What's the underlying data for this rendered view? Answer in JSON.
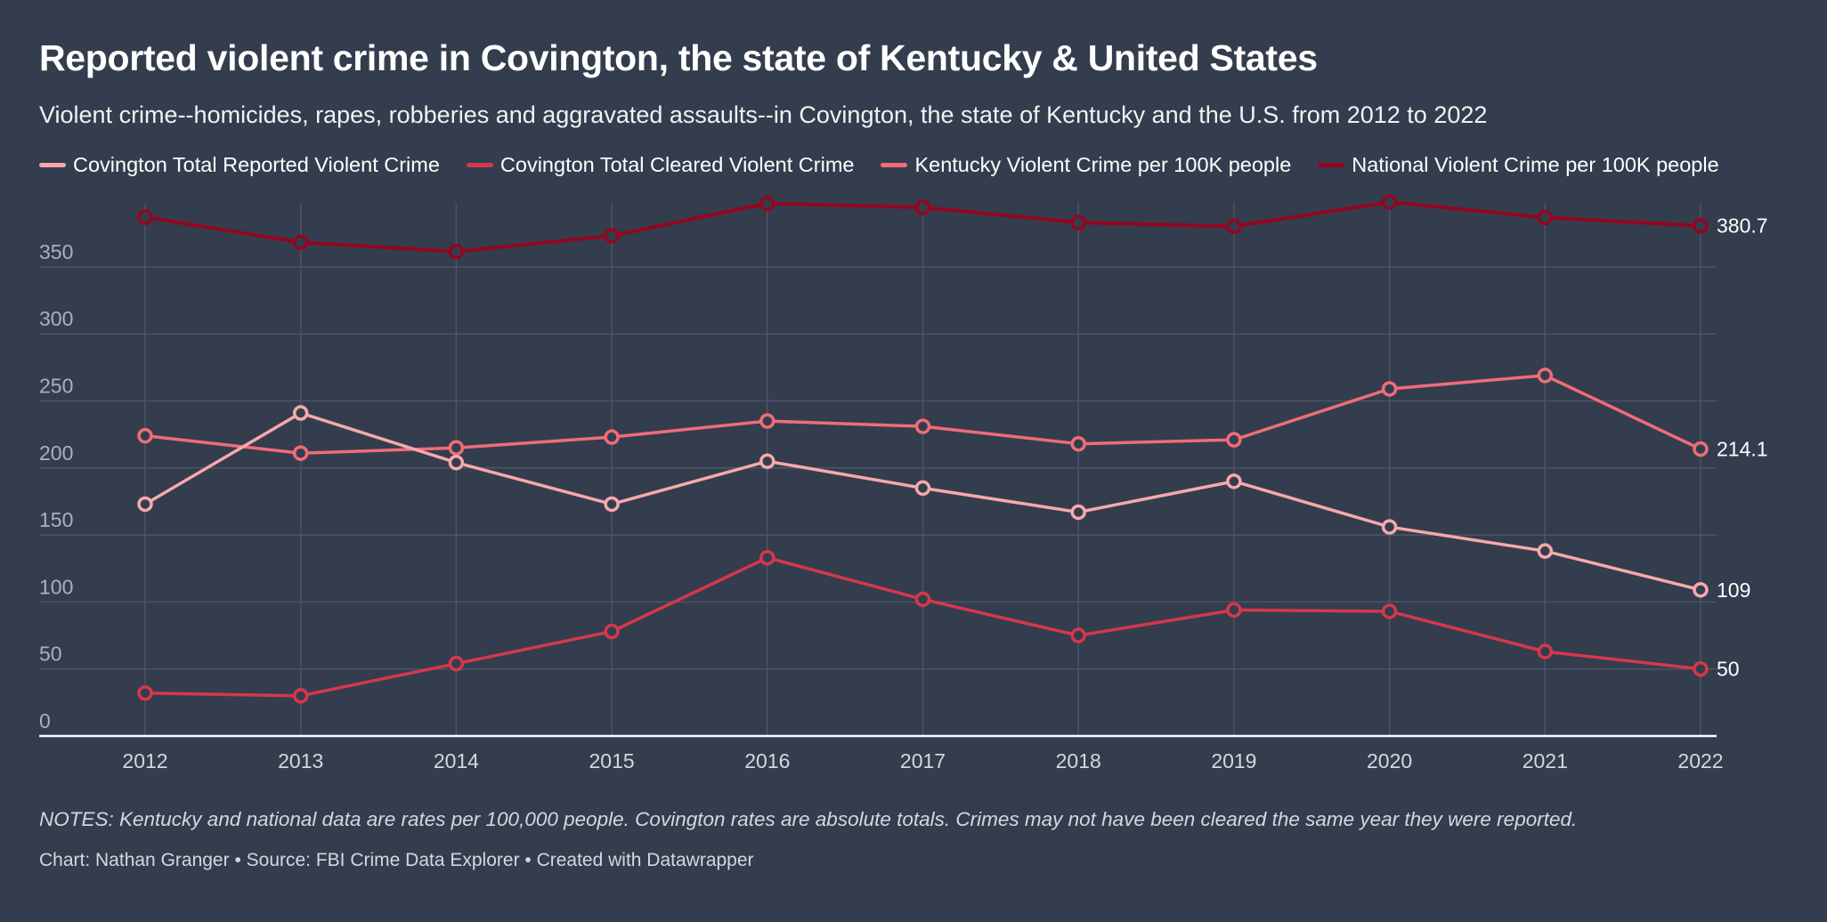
{
  "header": {
    "title": "Reported violent crime in Covington, the state of Kentucky & United States",
    "subtitle": "Violent crime--homicides, rapes, robberies and aggravated assaults--in Covington, the state of Kentucky and the U.S. from 2012 to 2022"
  },
  "footer": {
    "notes": "NOTES: Kentucky and national data are rates per 100,000 people. Covington rates are absolute totals. Crimes may not have been cleared the same year they were reported.",
    "byline": "Chart: Nathan Granger • Source: FBI Crime Data Explorer • Created with Datawrapper"
  },
  "colors": {
    "background": "#333d4d",
    "grid": "#4b5566",
    "axis": "#ffffff",
    "tick_text": "#aab1bb",
    "x_tick_text": "#d4d8de",
    "end_label_text": "#ffffff"
  },
  "chart_data": {
    "type": "line",
    "title": "Reported violent crime in Covington, the state of Kentucky & United States",
    "xlabel": "",
    "ylabel": "",
    "x": [
      2012,
      2013,
      2014,
      2015,
      2016,
      2017,
      2018,
      2019,
      2020,
      2021,
      2022
    ],
    "x_tick_labels": [
      "2012",
      "2013",
      "2014",
      "2015",
      "2016",
      "2017",
      "2018",
      "2019",
      "2020",
      "2021",
      "2022"
    ],
    "ylim": [
      0,
      400
    ],
    "y_ticks": [
      0,
      50,
      100,
      150,
      200,
      250,
      300,
      350
    ],
    "y_tick_labels": [
      "0",
      "50",
      "100",
      "150",
      "200",
      "250",
      "300",
      "350"
    ],
    "grid": true,
    "legend_position": "top-left",
    "markers": "hollow-circle",
    "series": [
      {
        "name": "Covington Total Reported Violent Crime",
        "color": "#f7a8ac",
        "values": [
          173,
          241,
          204,
          173,
          205,
          185,
          167,
          190,
          156,
          138,
          109
        ],
        "end_label": "109"
      },
      {
        "name": "Covington Total Cleared Violent Crime",
        "color": "#d6374a",
        "values": [
          32,
          30,
          54,
          78,
          133,
          102,
          75,
          94,
          93,
          63,
          50
        ],
        "end_label": "50"
      },
      {
        "name": "Kentucky Violent Crime per 100K people",
        "color": "#f06c78",
        "values": [
          224,
          211,
          215,
          223,
          235,
          231,
          218,
          221,
          259,
          269,
          214.1
        ],
        "end_label": "214.1"
      },
      {
        "name": "National Violent Crime per 100K people",
        "color": "#95051f",
        "values": [
          387.1,
          368.3,
          361.4,
          373.2,
          397.4,
          394.4,
          383.1,
          380.2,
          398.4,
          386.8,
          380.7
        ],
        "end_label": "380.7"
      }
    ]
  }
}
